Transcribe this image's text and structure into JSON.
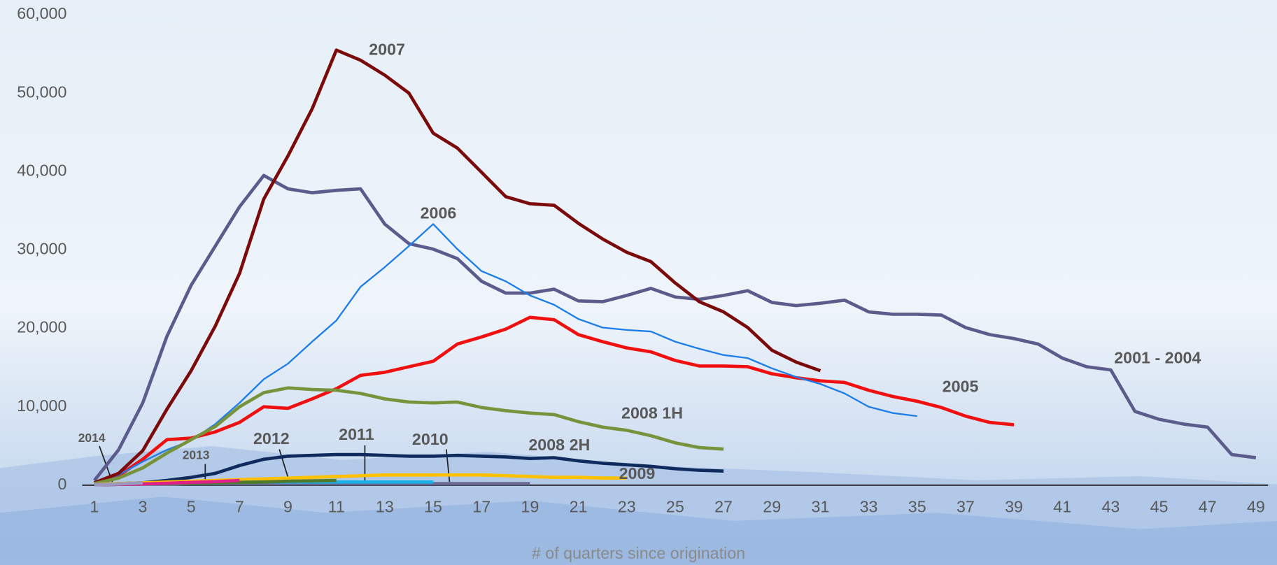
{
  "chart_data": {
    "type": "line",
    "xlabel": "# of quarters since origination",
    "x": [
      1,
      2,
      3,
      4,
      5,
      6,
      7,
      8,
      9,
      10,
      11,
      12,
      13,
      14,
      15,
      16,
      17,
      18,
      19,
      20,
      21,
      22,
      23,
      24,
      25,
      26,
      27,
      28,
      29,
      30,
      31,
      32,
      33,
      34,
      35,
      36,
      37,
      38,
      39,
      40,
      41,
      42,
      43,
      44,
      45,
      46,
      47,
      48,
      49
    ],
    "xlim": [
      0.5,
      49.5
    ],
    "xticks": [
      1,
      3,
      5,
      7,
      9,
      11,
      13,
      15,
      17,
      19,
      21,
      23,
      25,
      27,
      29,
      31,
      33,
      35,
      37,
      39,
      41,
      43,
      45,
      47,
      49
    ],
    "ylim": [
      0,
      60000
    ],
    "yticks": [
      0,
      {
        "value": 10000,
        "label": "10,000"
      },
      {
        "value": 20000,
        "label": "20,000"
      },
      {
        "value": 30000,
        "label": "30,000"
      },
      {
        "value": 40000,
        "label": "40,000"
      },
      {
        "value": 50000,
        "label": "50,000"
      },
      {
        "value": 60000,
        "label": "60,000"
      }
    ],
    "series": [
      {
        "name": "2001 - 2004",
        "color": "#5b5b8c",
        "values": [
          600,
          4500,
          10500,
          19000,
          25500,
          30500,
          35500,
          39500,
          37800,
          37300,
          37600,
          37800,
          33300,
          30800,
          30100,
          28900,
          26000,
          24500,
          24500,
          25000,
          23500,
          23400,
          24200,
          25100,
          24000,
          23700,
          24200,
          24800,
          23300,
          22900,
          23200,
          23600,
          22100,
          21800,
          21800,
          21700,
          20100,
          19200,
          18700,
          18000,
          16200,
          15100,
          14700,
          9400,
          8400,
          7800,
          7400,
          3900,
          3500
        ]
      },
      {
        "name": "2005",
        "color": "#f01010",
        "values": [
          300,
          1200,
          3300,
          5800,
          6000,
          6800,
          8000,
          10000,
          9800,
          11000,
          12300,
          14000,
          14400,
          15100,
          15800,
          18000,
          18900,
          19900,
          21400,
          21100,
          19200,
          18300,
          17500,
          17000,
          15900,
          15200,
          15200,
          15100,
          14200,
          13700,
          13300,
          13100,
          12100,
          11300,
          10700,
          9900,
          8800,
          8000,
          7700,
          null,
          null,
          null,
          null,
          null,
          null,
          null,
          null,
          null,
          null
        ]
      },
      {
        "name": "2006",
        "color": "#1e7ee8",
        "values": [
          300,
          1300,
          3000,
          4500,
          5700,
          7800,
          10500,
          13500,
          15500,
          18300,
          21000,
          25300,
          27800,
          30500,
          33300,
          30100,
          27300,
          26000,
          24200,
          23000,
          21200,
          20100,
          19800,
          19600,
          18300,
          17400,
          16600,
          16200,
          14900,
          13800,
          12900,
          11700,
          10000,
          9200,
          8800,
          null,
          null,
          null,
          null,
          null,
          null,
          null,
          null,
          null,
          null,
          null,
          null,
          null,
          null
        ]
      },
      {
        "name": "2007",
        "color": "#7b0a0a",
        "values": [
          300,
          1500,
          4400,
          9700,
          14600,
          20300,
          27000,
          36500,
          42000,
          48000,
          55500,
          54200,
          52300,
          50000,
          44900,
          43000,
          39900,
          36800,
          35900,
          35700,
          33400,
          31400,
          29700,
          28500,
          25800,
          23400,
          22100,
          20100,
          17200,
          15700,
          14600,
          null,
          null,
          null,
          null,
          null,
          null,
          null,
          null,
          null,
          null,
          null,
          null,
          null,
          null,
          null,
          null,
          null,
          null
        ]
      },
      {
        "name": "2008 1H",
        "color": "#77933c",
        "values": [
          200,
          900,
          2200,
          4100,
          5800,
          7500,
          10000,
          11800,
          12400,
          12200,
          12100,
          11700,
          11000,
          10600,
          10500,
          10600,
          9900,
          9500,
          9200,
          9000,
          8100,
          7400,
          7000,
          6300,
          5400,
          4800,
          4600,
          null,
          null,
          null,
          null,
          null,
          null,
          null,
          null,
          null,
          null,
          null,
          null,
          null,
          null,
          null,
          null,
          null,
          null,
          null,
          null,
          null,
          null
        ]
      },
      {
        "name": "2008 2H",
        "color": "#0f2a5c",
        "values": [
          100,
          200,
          300,
          600,
          1000,
          1500,
          2500,
          3300,
          3700,
          3800,
          3900,
          3900,
          3800,
          3700,
          3700,
          3800,
          3700,
          3600,
          3400,
          3500,
          3100,
          2800,
          2600,
          2400,
          2100,
          1900,
          1800,
          null,
          null,
          null,
          null,
          null,
          null,
          null,
          null,
          null,
          null,
          null,
          null,
          null,
          null,
          null,
          null,
          null,
          null,
          null,
          null,
          null,
          null
        ]
      },
      {
        "name": "2009",
        "color": "#ffc000",
        "values": [
          100,
          200,
          300,
          400,
          500,
          600,
          700,
          800,
          900,
          1000,
          1100,
          1200,
          1300,
          1300,
          1300,
          1300,
          1300,
          1200,
          1100,
          1000,
          1000,
          900,
          900,
          null,
          null,
          null,
          null,
          null,
          null,
          null,
          null,
          null,
          null,
          null,
          null,
          null,
          null,
          null,
          null,
          null,
          null,
          null,
          null,
          null,
          null,
          null,
          null,
          null,
          null
        ]
      },
      {
        "name": "2010",
        "color": "#6a6a94",
        "values": [
          50,
          100,
          150,
          150,
          200,
          200,
          200,
          200,
          200,
          200,
          200,
          200,
          200,
          200,
          200,
          200,
          200,
          200,
          200,
          null,
          null,
          null,
          null,
          null,
          null,
          null,
          null,
          null,
          null,
          null,
          null,
          null,
          null,
          null,
          null,
          null,
          null,
          null,
          null,
          null,
          null,
          null,
          null,
          null,
          null,
          null,
          null,
          null,
          null
        ]
      },
      {
        "name": "2011",
        "color": "#1ab0e8",
        "values": [
          50,
          100,
          150,
          200,
          250,
          300,
          350,
          400,
          400,
          400,
          400,
          400,
          400,
          400,
          400,
          null,
          null,
          null,
          null,
          null,
          null,
          null,
          null,
          null,
          null,
          null,
          null,
          null,
          null,
          null,
          null,
          null,
          null,
          null,
          null,
          null,
          null,
          null,
          null,
          null,
          null,
          null,
          null,
          null,
          null,
          null,
          null,
          null,
          null
        ]
      },
      {
        "name": "2012",
        "color": "#4e7a2a",
        "values": [
          50,
          100,
          150,
          200,
          250,
          300,
          350,
          400,
          500,
          550,
          600,
          null,
          null,
          null,
          null,
          null,
          null,
          null,
          null,
          null,
          null,
          null,
          null,
          null,
          null,
          null,
          null,
          null,
          null,
          null,
          null,
          null,
          null,
          null,
          null,
          null,
          null,
          null,
          null,
          null,
          null,
          null,
          null,
          null,
          null,
          null,
          null,
          null,
          null
        ]
      },
      {
        "name": "2013",
        "color": "#e0208a",
        "values": [
          50,
          100,
          150,
          250,
          350,
          450,
          600,
          null,
          null,
          null,
          null,
          null,
          null,
          null,
          null,
          null,
          null,
          null,
          null,
          null,
          null,
          null,
          null,
          null,
          null,
          null,
          null,
          null,
          null,
          null,
          null,
          null,
          null,
          null,
          null,
          null,
          null,
          null,
          null,
          null,
          null,
          null,
          null,
          null,
          null,
          null,
          null,
          null,
          null
        ]
      },
      {
        "name": "2014",
        "color": "#9a9ac0",
        "values": [
          50,
          150,
          300,
          null,
          null,
          null,
          null,
          null,
          null,
          null,
          null,
          null,
          null,
          null,
          null,
          null,
          null,
          null,
          null,
          null,
          null,
          null,
          null,
          null,
          null,
          null,
          null,
          null,
          null,
          null,
          null,
          null,
          null,
          null,
          null,
          null,
          null,
          null,
          null,
          null,
          null,
          null,
          null,
          null,
          null,
          null,
          null,
          null,
          null
        ]
      }
    ]
  }
}
